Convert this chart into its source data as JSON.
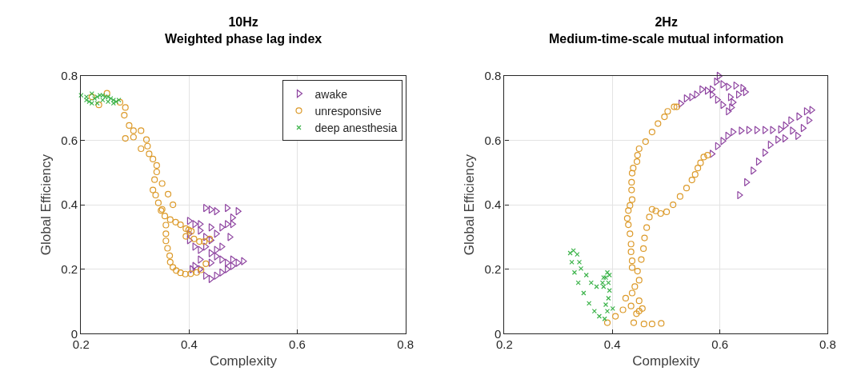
{
  "chart_data": [
    {
      "type": "scatter",
      "title": "10Hz\nWeighted phase lag index",
      "xlabel": "Complexity",
      "ylabel": "Global Efficiency",
      "xlim": [
        0.2,
        0.8
      ],
      "xticks": [
        0.2,
        0.4,
        0.6,
        0.8
      ],
      "ylim": [
        0,
        0.8
      ],
      "yticks": [
        0,
        0.2,
        0.4,
        0.6,
        0.8
      ],
      "grid": true,
      "legend": "top right",
      "series": [
        {
          "name": "awake",
          "color": "#8e44a0",
          "marker": "triangle",
          "x": [
            0.43,
            0.44,
            0.45,
            0.47,
            0.49,
            0.48,
            0.47,
            0.46,
            0.44,
            0.42,
            0.4,
            0.41,
            0.42,
            0.4,
            0.4,
            0.41,
            0.42,
            0.43,
            0.44,
            0.45,
            0.46,
            0.47,
            0.48,
            0.49,
            0.5,
            0.48,
            0.47,
            0.46,
            0.45,
            0.44,
            0.43,
            0.42,
            0.41,
            0.405,
            0.42,
            0.44,
            0.45,
            0.46,
            0.43,
            0.44,
            0.45,
            0.48,
            0.475
          ],
          "values": [
            0.39,
            0.385,
            0.38,
            0.39,
            0.38,
            0.36,
            0.34,
            0.33,
            0.33,
            0.32,
            0.35,
            0.34,
            0.34,
            0.31,
            0.29,
            0.27,
            0.26,
            0.27,
            0.25,
            0.24,
            0.23,
            0.22,
            0.21,
            0.22,
            0.225,
            0.23,
            0.2,
            0.19,
            0.18,
            0.17,
            0.18,
            0.2,
            0.21,
            0.2,
            0.23,
            0.22,
            0.26,
            0.27,
            0.3,
            0.29,
            0.31,
            0.34,
            0.3
          ]
        },
        {
          "name": "unresponsive",
          "color": "#dc9a2a",
          "marker": "circle",
          "x": [
            0.22,
            0.248,
            0.233,
            0.272,
            0.282,
            0.28,
            0.289,
            0.297,
            0.311,
            0.282,
            0.297,
            0.321,
            0.323,
            0.311,
            0.326,
            0.333,
            0.34,
            0.34,
            0.336,
            0.333,
            0.338,
            0.343,
            0.35,
            0.35,
            0.361,
            0.37,
            0.348,
            0.355,
            0.365,
            0.375,
            0.384,
            0.394,
            0.404,
            0.357,
            0.357,
            0.357,
            0.36,
            0.364,
            0.365,
            0.37,
            0.376,
            0.384,
            0.393,
            0.403,
            0.414,
            0.422,
            0.431,
            0.394,
            0.409,
            0.419,
            0.428,
            0.438,
            0.399
          ],
          "values": [
            0.735,
            0.746,
            0.71,
            0.718,
            0.702,
            0.678,
            0.646,
            0.63,
            0.63,
            0.606,
            0.61,
            0.602,
            0.582,
            0.574,
            0.558,
            0.542,
            0.522,
            0.502,
            0.478,
            0.446,
            0.43,
            0.406,
            0.386,
            0.466,
            0.433,
            0.4,
            0.382,
            0.365,
            0.354,
            0.346,
            0.338,
            0.326,
            0.318,
            0.337,
            0.31,
            0.288,
            0.265,
            0.242,
            0.222,
            0.206,
            0.196,
            0.189,
            0.185,
            0.186,
            0.19,
            0.198,
            0.217,
            0.302,
            0.294,
            0.286,
            0.286,
            0.294,
            0.322
          ]
        },
        {
          "name": "deep anesthesia",
          "color": "#3cb34a",
          "marker": "cross",
          "x": [
            0.2,
            0.21,
            0.215,
            0.22,
            0.225,
            0.23,
            0.235,
            0.24,
            0.245,
            0.25,
            0.255,
            0.26,
            0.265,
            0.21,
            0.22,
            0.23,
            0.24,
            0.25,
            0.26,
            0.27
          ],
          "values": [
            0.74,
            0.735,
            0.72,
            0.745,
            0.73,
            0.715,
            0.74,
            0.725,
            0.735,
            0.72,
            0.73,
            0.725,
            0.72,
            0.725,
            0.715,
            0.735,
            0.74,
            0.735,
            0.715,
            0.725
          ]
        }
      ]
    },
    {
      "type": "scatter",
      "title": "2Hz\nMedium-time-scale mutual information",
      "xlabel": "Complexity",
      "ylabel": "Global Efficiency",
      "xlim": [
        0.2,
        0.8
      ],
      "xticks": [
        0.2,
        0.4,
        0.6,
        0.8
      ],
      "ylim": [
        0,
        0.8
      ],
      "yticks": [
        0,
        0.2,
        0.4,
        0.6,
        0.8
      ],
      "grid": true,
      "series": [
        {
          "color": "#8e44a0",
          "marker": "triangle",
          "x": [
            0.527,
            0.537,
            0.547,
            0.556,
            0.566,
            0.576,
            0.585,
            0.593,
            0.598,
            0.605,
            0.615,
            0.629,
            0.642,
            0.647,
            0.634,
            0.619,
            0.624,
            0.621,
            0.615,
            0.605,
            0.595,
            0.585,
            0.585,
            0.595,
            0.605,
            0.614,
            0.624,
            0.639,
            0.653,
            0.668,
            0.683,
            0.697,
            0.712,
            0.721,
            0.731,
            0.746,
            0.76,
            0.77,
            0.765,
            0.754,
            0.744,
            0.734,
            0.72,
            0.707,
            0.693,
            0.683,
            0.671,
            0.661,
            0.649,
            0.636
          ],
          "values": [
            0.714,
            0.73,
            0.734,
            0.742,
            0.758,
            0.754,
            0.758,
            0.782,
            0.8,
            0.774,
            0.766,
            0.77,
            0.762,
            0.75,
            0.742,
            0.734,
            0.718,
            0.702,
            0.69,
            0.71,
            0.726,
            0.742,
            0.558,
            0.582,
            0.598,
            0.614,
            0.626,
            0.63,
            0.632,
            0.632,
            0.632,
            0.632,
            0.634,
            0.646,
            0.662,
            0.674,
            0.69,
            0.694,
            0.662,
            0.638,
            0.614,
            0.63,
            0.606,
            0.602,
            0.586,
            0.562,
            0.534,
            0.506,
            0.47,
            0.43
          ]
        },
        {
          "color": "#dc9a2a",
          "marker": "circle",
          "x": [
            0.391,
            0.406,
            0.42,
            0.425,
            0.435,
            0.445,
            0.44,
            0.459,
            0.474,
            0.491,
            0.45,
            0.456,
            0.45,
            0.437,
            0.442,
            0.45,
            0.447,
            0.437,
            0.437,
            0.435,
            0.435,
            0.433,
            0.43,
            0.428,
            0.43,
            0.433,
            0.437,
            0.436,
            0.436,
            0.437,
            0.439,
            0.446,
            0.447,
            0.45,
            0.462,
            0.474,
            0.485,
            0.497,
            0.503,
            0.515,
            0.52,
            0.454,
            0.458,
            0.46,
            0.464,
            0.469,
            0.474,
            0.481,
            0.49,
            0.501,
            0.513,
            0.526,
            0.538,
            0.548,
            0.554,
            0.559,
            0.564,
            0.57,
            0.577
          ],
          "values": [
            0.034,
            0.054,
            0.074,
            0.11,
            0.086,
            0.062,
            0.034,
            0.03,
            0.03,
            0.032,
            0.07,
            0.078,
            0.102,
            0.126,
            0.146,
            0.166,
            0.194,
            0.205,
            0.226,
            0.254,
            0.278,
            0.31,
            0.338,
            0.358,
            0.382,
            0.398,
            0.416,
            0.446,
            0.47,
            0.498,
            0.514,
            0.534,
            0.554,
            0.574,
            0.596,
            0.626,
            0.652,
            0.673,
            0.69,
            0.704,
            0.704,
            0.23,
            0.264,
            0.297,
            0.329,
            0.362,
            0.386,
            0.381,
            0.373,
            0.378,
            0.4,
            0.426,
            0.452,
            0.477,
            0.494,
            0.514,
            0.53,
            0.548,
            0.554
          ]
        },
        {
          "color": "#3cb34a",
          "marker": "cross",
          "x": [
            0.328,
            0.335,
            0.339,
            0.342,
            0.352,
            0.361,
            0.371,
            0.384,
            0.388,
            0.391,
            0.395,
            0.393,
            0.395,
            0.393,
            0.388,
            0.391,
            0.401,
            0.386,
            0.376,
            0.367,
            0.357,
            0.347,
            0.337,
            0.33,
            0.325,
            0.322,
            0.382,
            0.384
          ],
          "values": [
            0.258,
            0.246,
            0.222,
            0.202,
            0.182,
            0.158,
            0.146,
            0.146,
            0.174,
            0.19,
            0.182,
            0.158,
            0.134,
            0.11,
            0.09,
            0.07,
            0.078,
            0.046,
            0.054,
            0.07,
            0.094,
            0.126,
            0.158,
            0.19,
            0.222,
            0.25,
            0.158,
            0.174
          ]
        }
      ]
    }
  ]
}
